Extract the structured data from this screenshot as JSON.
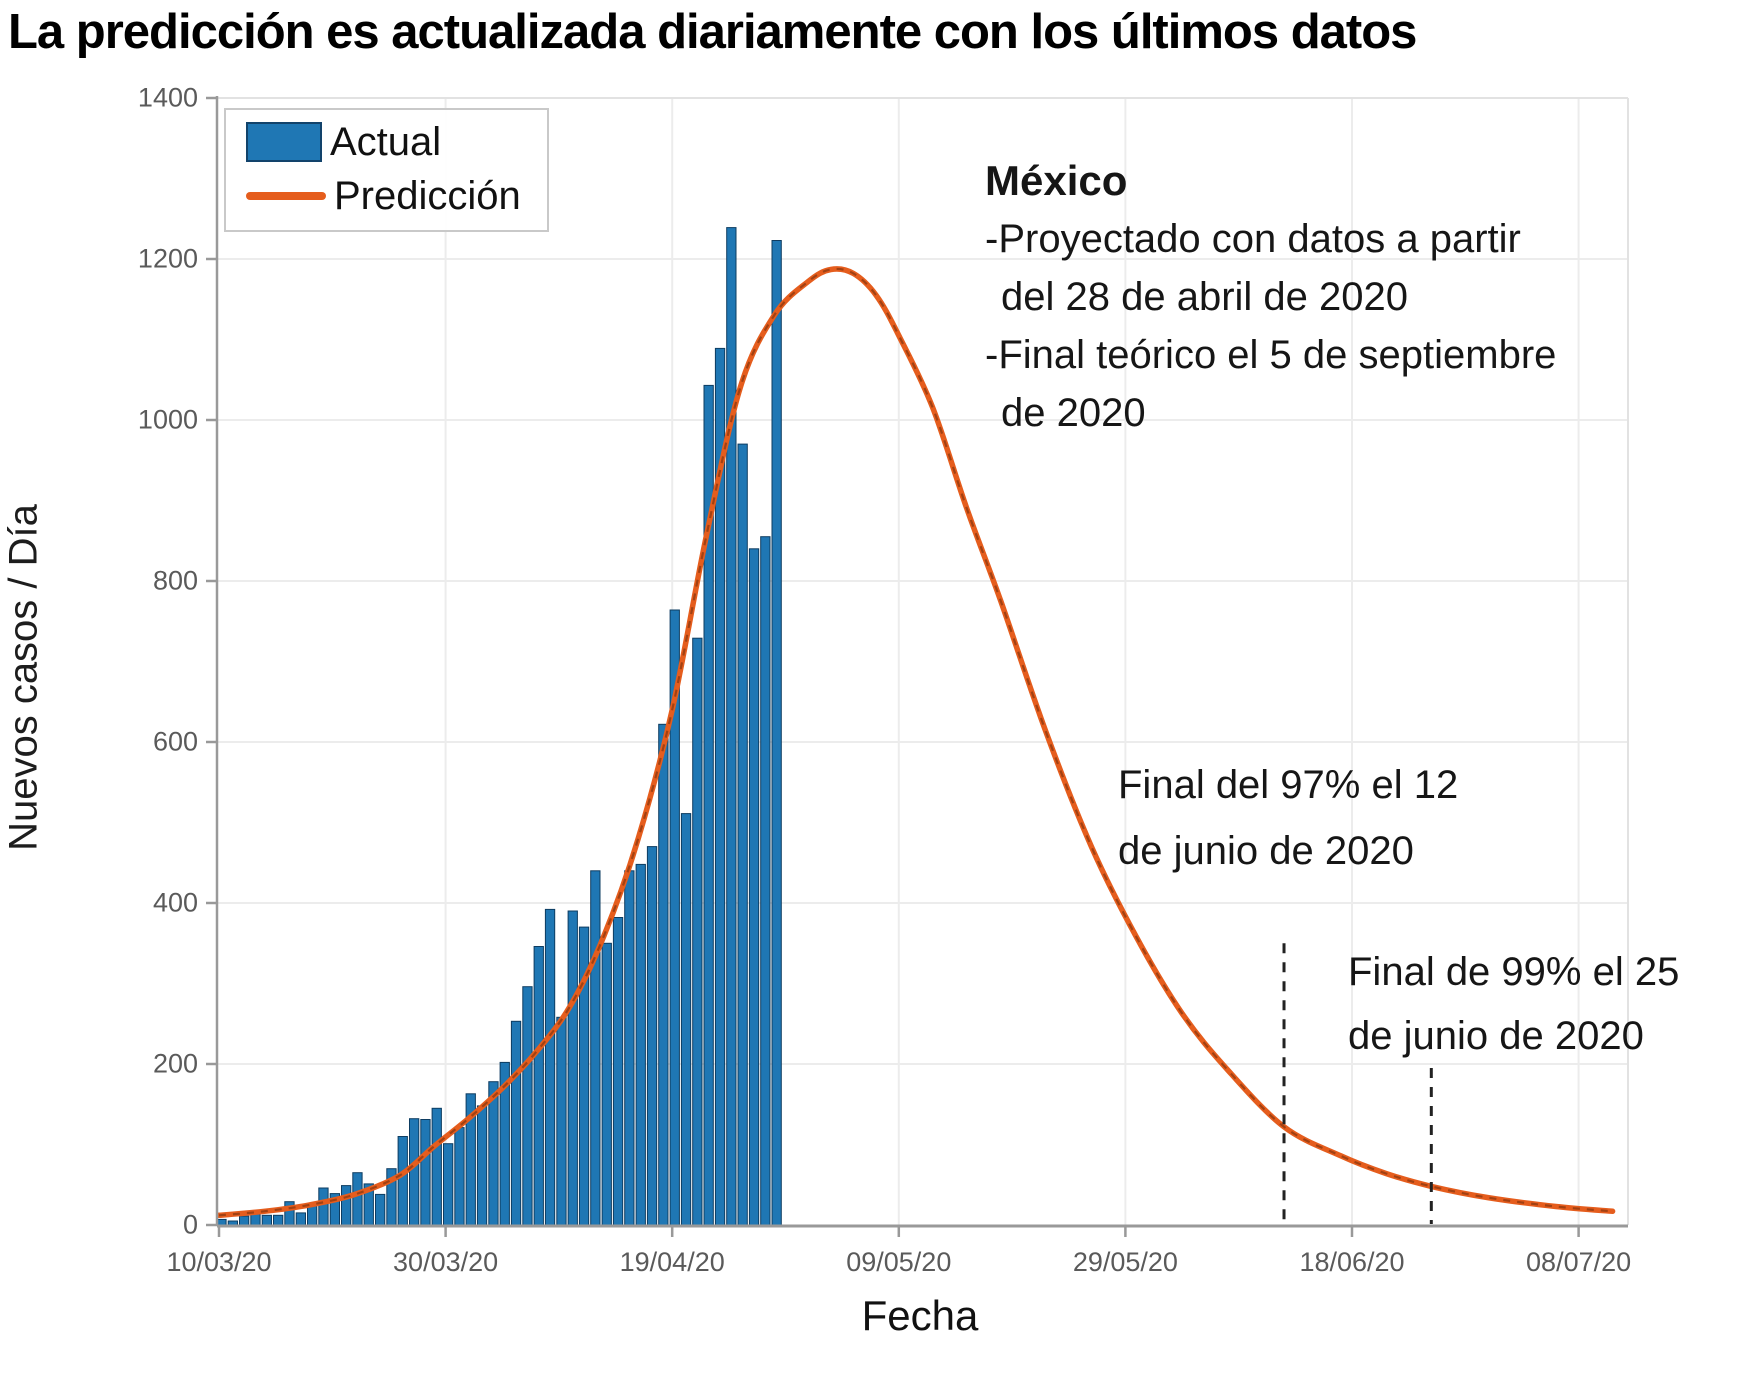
{
  "title": "La predicción es actualizada diariamente con los últimos datos",
  "legend": {
    "actual_label": "Actual",
    "prediction_label": "Predicción"
  },
  "axes": {
    "ylabel": "Nuevos casos / Día",
    "xlabel": "Fecha",
    "y_tick_labels": [
      "0",
      "200",
      "400",
      "600",
      "800",
      "1000",
      "1200",
      "1400"
    ],
    "x_tick_labels": [
      "10/03/20",
      "30/03/20",
      "19/04/20",
      "09/05/20",
      "29/05/20",
      "18/06/20",
      "08/07/20"
    ]
  },
  "annotations": {
    "mexico_title": "México",
    "mexico_lines": [
      "-Proyectado con datos a partir",
      "del 28 de abril de 2020",
      "-Final teórico el 5 de septiembre",
      "de 2020"
    ],
    "final97_lines": [
      "Final del 97% el 12",
      "de junio de 2020"
    ],
    "final99_lines": [
      "Final de 99% el 25",
      "de junio de 2020"
    ]
  },
  "colors": {
    "bar_fill": "#1f77b4",
    "bar_edge": "#0d3c61",
    "prediction_line": "#e55d1d",
    "prediction_dash_overlay": "#6b2a0a",
    "grid": "#ececec",
    "spine": "#999999",
    "spine_light": "#e2e2e2",
    "tick_text": "#5a5a5a",
    "marker_dash": "#222222",
    "title_text": "#000000"
  },
  "chart_data": {
    "type": "bar",
    "title": "La predicción es actualizada diariamente con los últimos datos",
    "xlabel": "Fecha",
    "ylabel": "Nuevos casos / Día",
    "ylim": [
      0,
      1400
    ],
    "x_range_days": [
      0,
      124
    ],
    "x_tick_days": [
      0,
      20,
      40,
      60,
      80,
      100,
      120
    ],
    "grid": true,
    "legend_position": "upper left",
    "bar_series": {
      "name": "Actual",
      "dates": [
        "10/03",
        "11/03",
        "12/03",
        "13/03",
        "14/03",
        "15/03",
        "16/03",
        "17/03",
        "18/03",
        "19/03",
        "20/03",
        "21/03",
        "22/03",
        "23/03",
        "24/03",
        "25/03",
        "26/03",
        "27/03",
        "28/03",
        "29/03",
        "30/03",
        "31/03",
        "01/04",
        "02/04",
        "03/04",
        "04/04",
        "05/04",
        "06/04",
        "07/04",
        "08/04",
        "09/04",
        "10/04",
        "11/04",
        "12/04",
        "13/04",
        "14/04",
        "15/04",
        "16/04",
        "17/04",
        "18/04",
        "19/04",
        "20/04",
        "21/04",
        "22/04",
        "23/04",
        "24/04",
        "25/04",
        "26/04",
        "27/04",
        "28/04"
      ],
      "values": [
        7,
        5,
        11,
        15,
        12,
        12,
        29,
        15,
        25,
        46,
        39,
        49,
        65,
        51,
        38,
        70,
        110,
        132,
        131,
        145,
        101,
        121,
        163,
        148,
        178,
        202,
        253,
        296,
        346,
        392,
        258,
        390,
        370,
        440,
        350,
        382,
        440,
        448,
        470,
        622,
        764,
        511,
        729,
        1043,
        1089,
        1239,
        970,
        840,
        855,
        1223
      ]
    },
    "prediction_series": {
      "name": "Predicción",
      "day0_date": "10/03/20",
      "peak_value": 1190,
      "peak_date": "04/05/20",
      "points_day_value": [
        [
          0,
          12
        ],
        [
          4,
          17
        ],
        [
          8,
          25
        ],
        [
          12,
          38
        ],
        [
          16,
          62
        ],
        [
          19,
          98
        ],
        [
          22,
          132
        ],
        [
          25,
          170
        ],
        [
          28,
          215
        ],
        [
          31,
          272
        ],
        [
          34,
          360
        ],
        [
          37,
          480
        ],
        [
          40,
          640
        ],
        [
          43,
          855
        ],
        [
          46,
          1040
        ],
        [
          49,
          1130
        ],
        [
          52,
          1172
        ],
        [
          54,
          1187
        ],
        [
          56,
          1182
        ],
        [
          58,
          1155
        ],
        [
          60,
          1105
        ],
        [
          63,
          1015
        ],
        [
          66,
          890
        ],
        [
          69,
          775
        ],
        [
          73,
          612
        ],
        [
          77,
          470
        ],
        [
          81,
          357
        ],
        [
          85,
          263
        ],
        [
          89,
          193
        ],
        [
          94,
          122
        ],
        [
          99,
          86
        ],
        [
          103,
          64
        ],
        [
          107,
          48
        ],
        [
          112,
          34
        ],
        [
          118,
          23
        ],
        [
          123,
          17
        ]
      ]
    },
    "markers": [
      {
        "name": "final-97",
        "label": "Final del 97% el 12 de junio de 2020",
        "day": 94,
        "top_value": 350
      },
      {
        "name": "final-99",
        "label": "Final de 99% el 25 de junio de 2020",
        "day": 107,
        "top_value": 195
      }
    ]
  }
}
